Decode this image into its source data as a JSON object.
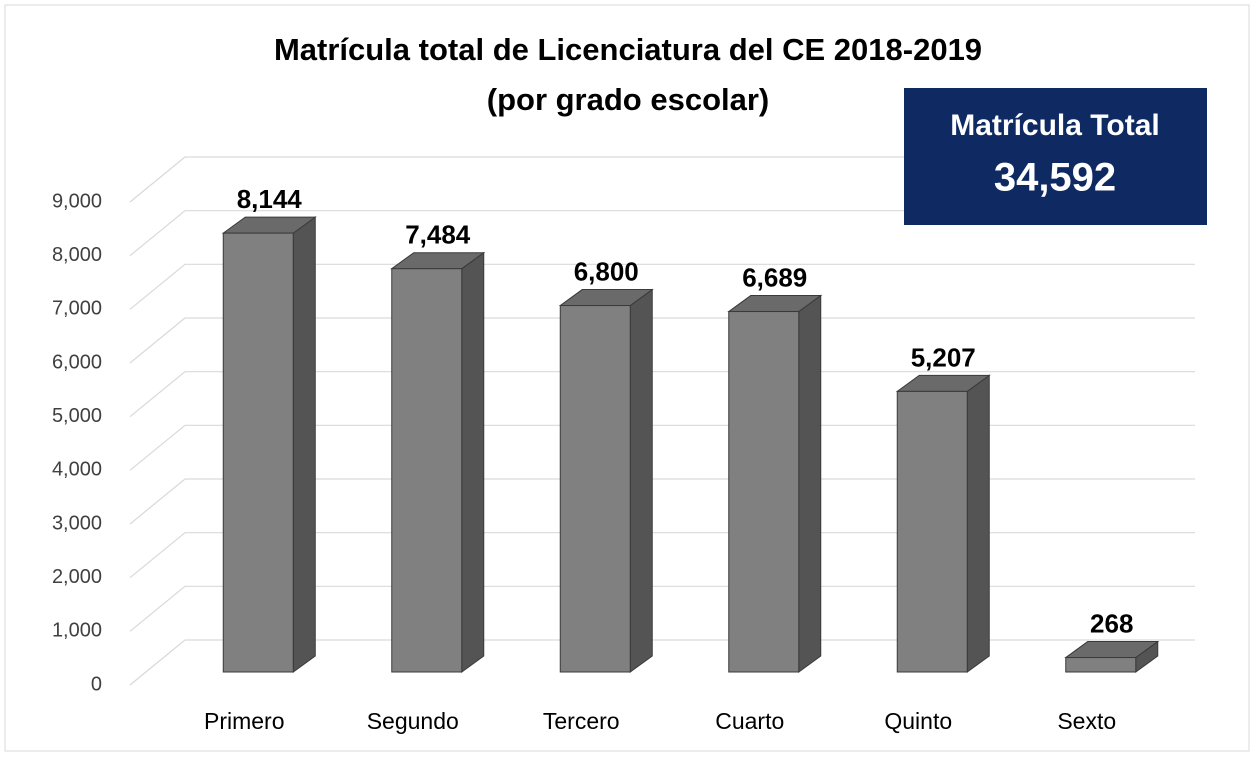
{
  "chart_data": {
    "type": "bar3d",
    "title": "Matrícula total de Licenciatura del CE 2018-2019",
    "subtitle": "(por grado escolar)",
    "categories": [
      "Primero",
      "Segundo",
      "Tercero",
      "Cuarto",
      "Quinto",
      "Sexto"
    ],
    "values": [
      8144,
      7484,
      6800,
      6689,
      5207,
      268
    ],
    "value_labels": [
      "8,144",
      "7,484",
      "6,800",
      "6,689",
      "5,207",
      "268"
    ],
    "color": "#808080",
    "ylim": [
      0,
      9000
    ],
    "yticks": [
      0,
      {
        "value": 1000,
        "label": "1,000"
      },
      {
        "value": 2000,
        "label": "2,000"
      },
      {
        "value": 3000,
        "label": "3,000"
      },
      {
        "value": 4000,
        "label": "4,000"
      },
      {
        "value": 5000,
        "label": "5,000"
      },
      {
        "value": 6000,
        "label": "6,000"
      },
      {
        "value": 7000,
        "label": "7,000"
      },
      {
        "value": 8000,
        "label": "8,000"
      },
      {
        "value": 9000,
        "label": "9,000"
      }
    ],
    "grid": true,
    "total_box": {
      "label": "Matrícula Total",
      "value": 34592,
      "value_label": "34,592",
      "color": "#0f2a62"
    }
  }
}
